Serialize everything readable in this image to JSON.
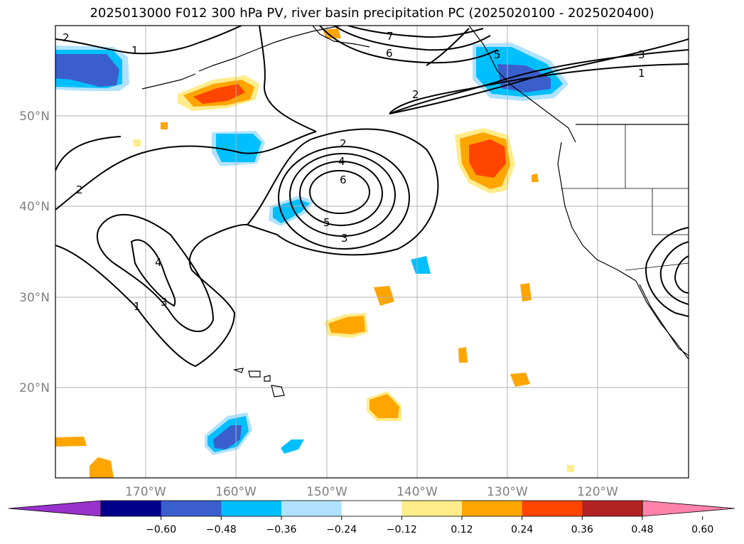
{
  "title": "2025013000 F012 300 hPa PV, river basin precipitation PC (2025020100 - 2025020400)",
  "lat_labels": [
    "50°N",
    "40°N",
    "30°N",
    "20°N"
  ],
  "lon_labels": [
    "170°W",
    "160°W",
    "150°W",
    "140°W",
    "130°W",
    "120°W"
  ],
  "contour_labels": [
    "2",
    "1",
    "7",
    "6",
    "5",
    "3",
    "1",
    "2",
    "2",
    "2",
    "4",
    "6",
    "5",
    "3",
    "4",
    "3",
    "1"
  ],
  "colorbar": {
    "ticks": [
      "−0.60",
      "−0.48",
      "−0.36",
      "−0.24",
      "−0.12",
      "0.12",
      "0.24",
      "0.36",
      "0.48",
      "0.60"
    ],
    "colors": [
      "#9932cc",
      "#00008b",
      "#3a5fcd",
      "#00bfff",
      "#b0e2ff",
      "#ffffff",
      "#ffec8b",
      "#ffa500",
      "#ff4500",
      "#b22222",
      "#ff82ab"
    ]
  },
  "colors": {
    "grid": "#b0b0b0",
    "contour": "#000000",
    "coast": "#000000",
    "label": "#808080"
  }
}
